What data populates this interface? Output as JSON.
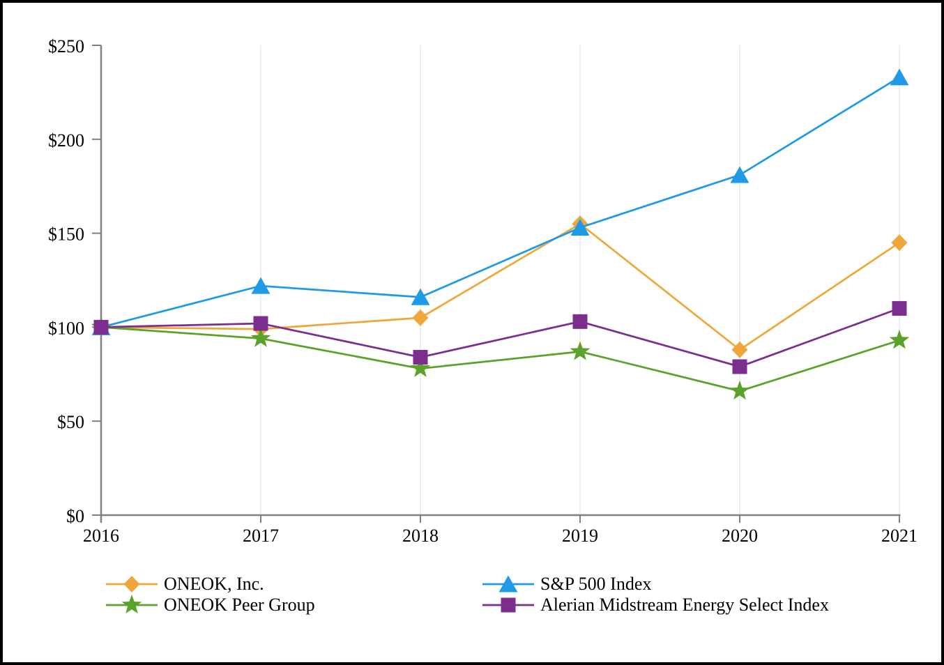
{
  "chart_data": {
    "type": "line",
    "title": "",
    "xlabel": "",
    "ylabel": "",
    "x_labels": [
      "2016",
      "2017",
      "2018",
      "2019",
      "2020",
      "2021"
    ],
    "ylim": [
      0,
      250
    ],
    "y_ticks": [
      {
        "value": 0,
        "label": "$0"
      },
      {
        "value": 50,
        "label": "$50"
      },
      {
        "value": 100,
        "label": "$100"
      },
      {
        "value": 150,
        "label": "$150"
      },
      {
        "value": 200,
        "label": "$200"
      },
      {
        "value": 250,
        "label": "$250"
      }
    ],
    "grid": "vertical-only",
    "legend_position": "bottom",
    "series": [
      {
        "name": "ONEOK, Inc.",
        "marker": "diamond",
        "color": "#EFA73C",
        "values": [
          100,
          99,
          105,
          155,
          88,
          145
        ]
      },
      {
        "name": "S&P 500 Index",
        "marker": "triangle",
        "color": "#1E9AE6",
        "values": [
          100,
          122,
          116,
          153,
          181,
          233
        ]
      },
      {
        "name": "ONEOK Peer Group",
        "marker": "star",
        "color": "#59A32B",
        "values": [
          100,
          94,
          78,
          87,
          66,
          93
        ]
      },
      {
        "name": "Alerian Midstream Energy Select Index",
        "marker": "square",
        "color": "#7B2E8D",
        "values": [
          100,
          102,
          84,
          103,
          79,
          110
        ]
      }
    ],
    "legend_columns": [
      [
        0,
        2
      ],
      [
        1,
        3
      ]
    ]
  },
  "style": {
    "axis_color": "#808080",
    "grid_color": "#EEEEEE",
    "text_color": "#000000",
    "border_color": "#000000",
    "background": "#FFFFFF"
  }
}
